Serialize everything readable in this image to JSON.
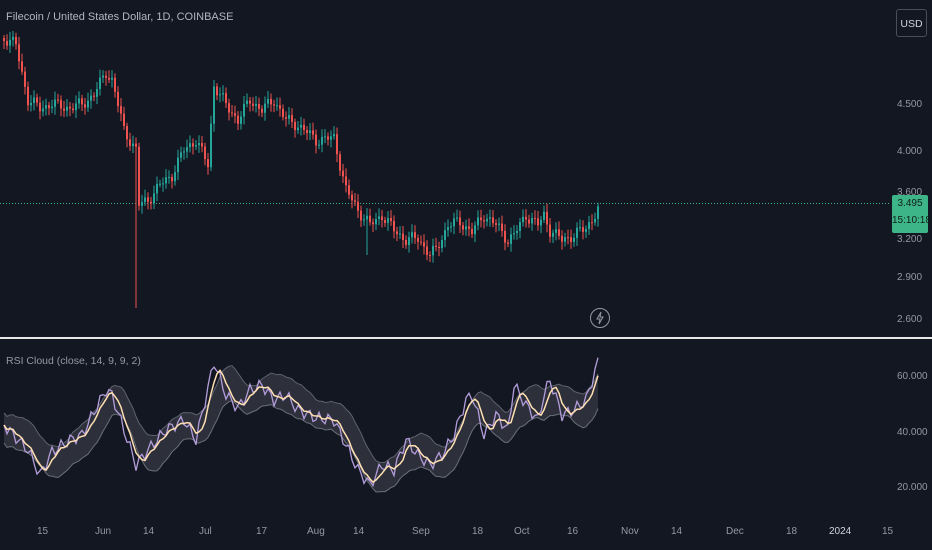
{
  "header": {
    "symbol_title": "Filecoin / United States Dollar, 1D, COINBASE"
  },
  "currency_button": {
    "label": "USD"
  },
  "price_axis": {
    "labels": [
      "4.500",
      "4.000",
      "3.600",
      "3.200",
      "2.900",
      "2.600"
    ],
    "current_price": "3.495",
    "countdown": "15:10:18"
  },
  "rsi_panel": {
    "title": "RSI Cloud (close, 14, 9, 9, 2)",
    "axis_labels": [
      "60.000",
      "40.000",
      "20.000"
    ]
  },
  "time_axis": {
    "labels": [
      "15",
      "Jun",
      "14",
      "Jul",
      "17",
      "Aug",
      "14",
      "Sep",
      "18",
      "Oct",
      "16",
      "Nov",
      "14",
      "Dec",
      "18",
      "2024",
      "15"
    ]
  },
  "colors": {
    "background": "#131722",
    "up_candle": "#26a69a",
    "down_candle": "#ef5350",
    "price_line": "#3eb489",
    "rsi_line": "#b39ddb",
    "rsi_signal": "#ffe0b2",
    "cloud": "#5d606b"
  },
  "icons": {
    "realtime": "lightning-icon"
  }
}
